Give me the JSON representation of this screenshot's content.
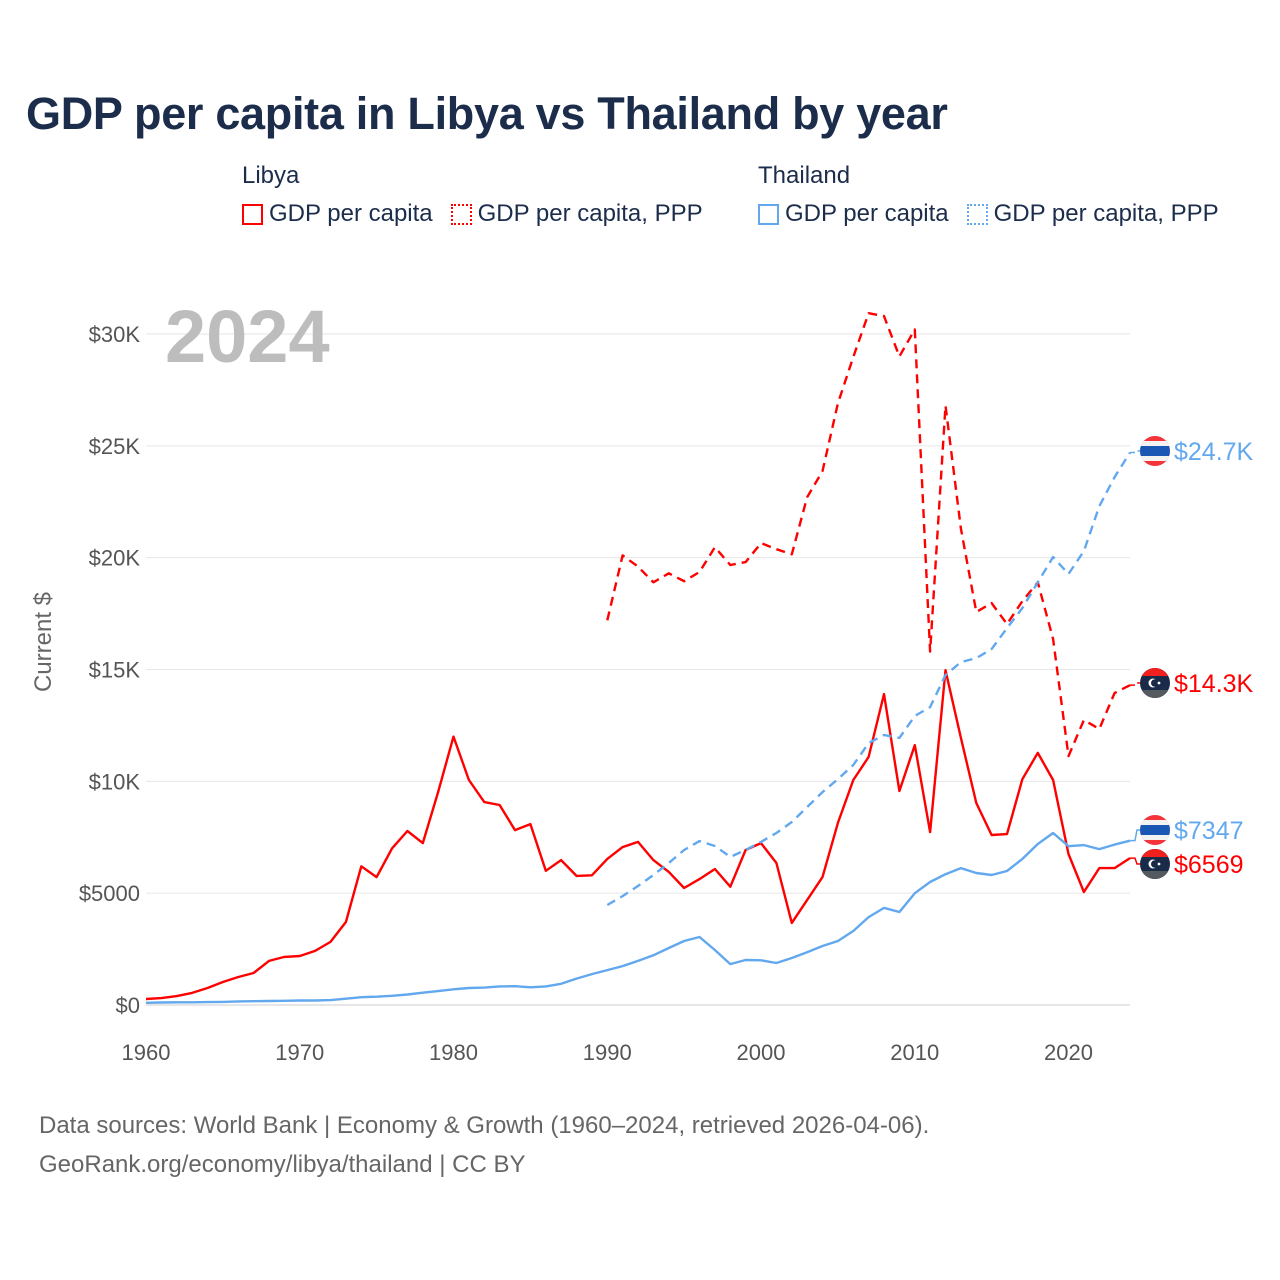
{
  "title": "GDP per capita in Libya vs Thailand by year",
  "legend": [
    {
      "group": "Libya",
      "items": [
        {
          "label": "GDP per capita",
          "color": "#ff0000",
          "style": "solid"
        },
        {
          "label": "GDP per capita, PPP",
          "color": "#ff0000",
          "style": "dotted"
        }
      ]
    },
    {
      "group": "Thailand",
      "items": [
        {
          "label": "GDP per capita",
          "color": "#62a8ee",
          "style": "solid"
        },
        {
          "label": "GDP per capita, PPP",
          "color": "#62a8ee",
          "style": "dotted"
        }
      ]
    }
  ],
  "year_label": "2024",
  "footer": {
    "line1": "Data sources: World Bank | Economy & Growth (1960–2024, retrieved 2026-04-06).",
    "line2": "GeoRank.org/economy/libya/thailand | CC BY"
  },
  "end_labels": [
    {
      "series": "thailand_ppp",
      "text": "$24.7K",
      "flag": "thailand-flag",
      "color": "#62a8ee"
    },
    {
      "series": "libya_ppp",
      "text": "$14.3K",
      "flag": "libya-flag",
      "color": "#ff0000"
    },
    {
      "series": "thailand_gdp",
      "text": "$7347",
      "flag": "thailand-flag",
      "color": "#62a8ee"
    },
    {
      "series": "libya_gdp",
      "text": "$6569",
      "flag": "libya-flag",
      "color": "#ff0000"
    }
  ],
  "chart_data": {
    "type": "line",
    "title": "GDP per capita in Libya vs Thailand by year",
    "xlabel": "",
    "ylabel": "Current $",
    "xlim": [
      1960,
      2024
    ],
    "ylim": [
      0,
      32000
    ],
    "x_ticks": [
      1960,
      1970,
      1980,
      1990,
      2000,
      2010,
      2020
    ],
    "x_tick_labels": [
      "1960",
      "1970",
      "1980",
      "1990",
      "2000",
      "2010",
      "2020"
    ],
    "y_ticks": [
      0,
      5000,
      10000,
      15000,
      20000,
      25000,
      30000
    ],
    "y_tick_labels": [
      "$0",
      "$5000",
      "$10K",
      "$15K",
      "$20K",
      "$25K",
      "$30K"
    ],
    "grid": true,
    "legend_position": "top",
    "series": [
      {
        "id": "libya_gdp",
        "name": "Libya – GDP per capita",
        "color": "#ff0000",
        "dash": false,
        "start": 1960,
        "values": [
          270,
          310,
          400,
          540,
          760,
          1030,
          1250,
          1430,
          1970,
          2150,
          2190,
          2420,
          2820,
          3710,
          6200,
          5720,
          7000,
          7780,
          7240,
          9520,
          12000,
          10060,
          9070,
          8940,
          7820,
          8090,
          6000,
          6480,
          5770,
          5800,
          6530,
          7060,
          7290,
          6480,
          5950,
          5230,
          5630,
          6080,
          5290,
          6930,
          7240,
          6350,
          3670,
          4690,
          5720,
          8140,
          10060,
          11090,
          13900,
          9570,
          11620,
          7730,
          14970,
          11940,
          9030,
          7600,
          7640,
          10100,
          11270,
          10060,
          6750,
          5050,
          6120,
          6120,
          6569
        ]
      },
      {
        "id": "libya_ppp",
        "name": "Libya – GDP per capita, PPP",
        "color": "#ff0000",
        "dash": true,
        "start": 1990,
        "values": [
          17200,
          20100,
          19600,
          18900,
          19300,
          18950,
          19360,
          20470,
          19670,
          19800,
          20650,
          20380,
          20150,
          22700,
          23870,
          26900,
          28970,
          30930,
          30800,
          29000,
          30200,
          15800,
          26800,
          21300,
          17570,
          17970,
          17030,
          18060,
          18900,
          16360,
          11130,
          12740,
          12340,
          13950,
          14300
        ]
      },
      {
        "id": "thailand_gdp",
        "name": "Thailand – GDP per capita",
        "color": "#62a8ee",
        "dash": false,
        "start": 1960,
        "values": [
          100,
          110,
          120,
          120,
          130,
          140,
          160,
          170,
          180,
          190,
          200,
          200,
          220,
          280,
          350,
          370,
          410,
          470,
          550,
          620,
          700,
          760,
          780,
          830,
          840,
          790,
          830,
          950,
          1180,
          1380,
          1560,
          1740,
          1970,
          2220,
          2550,
          2860,
          3040,
          2460,
          1830,
          2010,
          2000,
          1880,
          2100,
          2360,
          2640,
          2860,
          3310,
          3930,
          4340,
          4160,
          5000,
          5500,
          5850,
          6120,
          5900,
          5810,
          5990,
          6530,
          7200,
          7690,
          7100,
          7150,
          6970,
          7170,
          7347
        ]
      },
      {
        "id": "thailand_ppp",
        "name": "Thailand – GDP per capita, PPP",
        "color": "#62a8ee",
        "dash": true,
        "start": 1990,
        "values": [
          4470,
          4870,
          5320,
          5810,
          6350,
          6930,
          7330,
          7110,
          6620,
          6930,
          7290,
          7690,
          8180,
          8850,
          9520,
          10100,
          10730,
          11710,
          12070,
          11940,
          12920,
          13320,
          14750,
          15330,
          15510,
          15910,
          16850,
          17750,
          18900,
          20030,
          19270,
          20300,
          22300,
          23600,
          24700
        ]
      }
    ]
  }
}
